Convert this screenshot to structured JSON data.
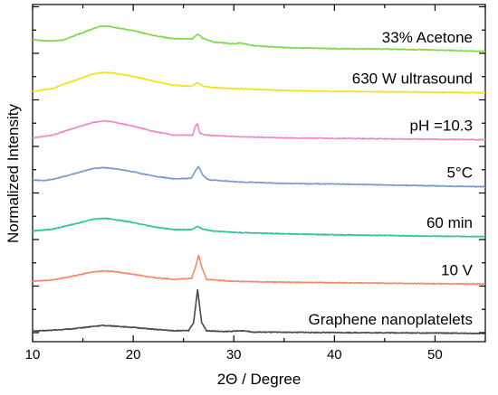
{
  "chart_data": {
    "type": "line",
    "title": "",
    "xlabel": "2Θ / Degree",
    "ylabel": "Normalized Intensity",
    "xlim": [
      10,
      55
    ],
    "x_ticks": [
      10,
      20,
      30,
      40,
      50
    ],
    "y_ticks_shown": false,
    "grid": false,
    "legend": "none",
    "labels_position": "right, above each curve",
    "series": [
      {
        "name": "Graphene nanoplatelets",
        "color": "#4a4a4a",
        "offset": 0,
        "points": [
          [
            10,
            0.07
          ],
          [
            12,
            0.09
          ],
          [
            14,
            0.12
          ],
          [
            16,
            0.17
          ],
          [
            17,
            0.19
          ],
          [
            18,
            0.18
          ],
          [
            20,
            0.15
          ],
          [
            22,
            0.11
          ],
          [
            24,
            0.08
          ],
          [
            25.5,
            0.08
          ],
          [
            26.0,
            0.25
          ],
          [
            26.4,
            0.95
          ],
          [
            26.8,
            0.25
          ],
          [
            27.3,
            0.08
          ],
          [
            29,
            0.06
          ],
          [
            31,
            0.08
          ],
          [
            32,
            0.05
          ],
          [
            40,
            0.04
          ],
          [
            50,
            0.03
          ],
          [
            55,
            0.02
          ]
        ]
      },
      {
        "name": "10 V",
        "color": "#f5896a",
        "offset": 1,
        "points": [
          [
            10,
            0.14
          ],
          [
            12,
            0.17
          ],
          [
            14,
            0.25
          ],
          [
            16,
            0.34
          ],
          [
            17,
            0.36
          ],
          [
            18,
            0.35
          ],
          [
            20,
            0.29
          ],
          [
            22,
            0.22
          ],
          [
            24,
            0.18
          ],
          [
            25.8,
            0.2
          ],
          [
            26.2,
            0.45
          ],
          [
            26.5,
            0.7
          ],
          [
            26.8,
            0.45
          ],
          [
            27.3,
            0.18
          ],
          [
            30,
            0.14
          ],
          [
            35,
            0.12
          ],
          [
            40,
            0.11
          ],
          [
            50,
            0.09
          ],
          [
            55,
            0.08
          ]
        ]
      },
      {
        "name": "60 min",
        "color": "#2ec4a0",
        "offset": 2,
        "points": [
          [
            10,
            0.22
          ],
          [
            12,
            0.26
          ],
          [
            14,
            0.36
          ],
          [
            16,
            0.47
          ],
          [
            17,
            0.49
          ],
          [
            18,
            0.47
          ],
          [
            20,
            0.4
          ],
          [
            22,
            0.31
          ],
          [
            24,
            0.25
          ],
          [
            25.8,
            0.25
          ],
          [
            26.4,
            0.32
          ],
          [
            26.9,
            0.26
          ],
          [
            28,
            0.22
          ],
          [
            30,
            0.19
          ],
          [
            35,
            0.16
          ],
          [
            40,
            0.14
          ],
          [
            50,
            0.11
          ],
          [
            55,
            0.1
          ]
        ]
      },
      {
        "name": "5°C",
        "color": "#7a9ccd",
        "offset": 3,
        "points": [
          [
            10,
            0.32
          ],
          [
            11,
            0.3
          ],
          [
            12,
            0.33
          ],
          [
            14,
            0.44
          ],
          [
            16,
            0.56
          ],
          [
            17,
            0.58
          ],
          [
            18,
            0.56
          ],
          [
            20,
            0.49
          ],
          [
            22,
            0.4
          ],
          [
            24,
            0.34
          ],
          [
            25.8,
            0.35
          ],
          [
            26.2,
            0.52
          ],
          [
            26.5,
            0.6
          ],
          [
            26.9,
            0.42
          ],
          [
            27.5,
            0.32
          ],
          [
            30,
            0.28
          ],
          [
            35,
            0.24
          ],
          [
            40,
            0.23
          ],
          [
            45,
            0.21
          ],
          [
            50,
            0.19
          ],
          [
            55,
            0.17
          ]
        ]
      },
      {
        "name": "pH =10.3",
        "color": "#f089c8",
        "offset": 4,
        "points": [
          [
            10,
            0.22
          ],
          [
            12,
            0.28
          ],
          [
            14,
            0.42
          ],
          [
            16,
            0.55
          ],
          [
            17,
            0.58
          ],
          [
            18,
            0.56
          ],
          [
            20,
            0.47
          ],
          [
            22,
            0.36
          ],
          [
            24,
            0.28
          ],
          [
            25.9,
            0.28
          ],
          [
            26.2,
            0.48
          ],
          [
            26.4,
            0.52
          ],
          [
            26.6,
            0.32
          ],
          [
            27.2,
            0.28
          ],
          [
            30,
            0.25
          ],
          [
            35,
            0.22
          ],
          [
            40,
            0.21
          ],
          [
            50,
            0.19
          ],
          [
            55,
            0.18
          ]
        ]
      },
      {
        "name": "630 W ultrasound",
        "color": "#f3e21c",
        "offset": 5,
        "points": [
          [
            10,
            0.22
          ],
          [
            12,
            0.28
          ],
          [
            14,
            0.44
          ],
          [
            16,
            0.59
          ],
          [
            17,
            0.62
          ],
          [
            18,
            0.61
          ],
          [
            20,
            0.54
          ],
          [
            22,
            0.44
          ],
          [
            24,
            0.35
          ],
          [
            25.8,
            0.33
          ],
          [
            26.4,
            0.4
          ],
          [
            27,
            0.33
          ],
          [
            28,
            0.3
          ],
          [
            30,
            0.28
          ],
          [
            35,
            0.24
          ],
          [
            40,
            0.22
          ],
          [
            50,
            0.2
          ],
          [
            55,
            0.19
          ]
        ]
      },
      {
        "name": "33% Acetone",
        "color": "#7fd84a",
        "offset": 6,
        "points": [
          [
            10,
            0.33
          ],
          [
            11,
            0.31
          ],
          [
            12,
            0.3
          ],
          [
            13,
            0.32
          ],
          [
            15,
            0.48
          ],
          [
            16.5,
            0.6
          ],
          [
            17,
            0.62
          ],
          [
            18,
            0.6
          ],
          [
            20,
            0.52
          ],
          [
            22,
            0.42
          ],
          [
            24,
            0.35
          ],
          [
            25.9,
            0.35
          ],
          [
            26.4,
            0.45
          ],
          [
            26.9,
            0.36
          ],
          [
            28,
            0.28
          ],
          [
            30,
            0.24
          ],
          [
            30.6,
            0.26
          ],
          [
            32,
            0.2
          ],
          [
            35,
            0.16
          ],
          [
            40,
            0.14
          ],
          [
            45,
            0.13
          ],
          [
            50,
            0.11
          ],
          [
            55,
            0.08
          ]
        ]
      }
    ]
  }
}
